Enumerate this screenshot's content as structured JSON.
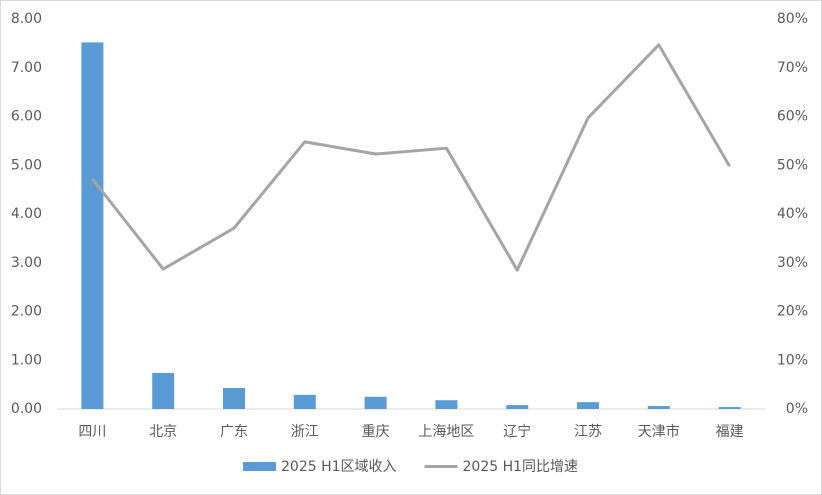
{
  "chart_data": {
    "type": "bar-line",
    "categories": [
      "四川",
      "北京",
      "广东",
      "浙江",
      "重庆",
      "上海地区",
      "辽宁",
      "江苏",
      "天津市",
      "福建"
    ],
    "series": [
      {
        "name": "2025 H1区域收入",
        "type": "bar",
        "color": "#5b9bd5",
        "values": [
          7.52,
          0.74,
          0.43,
          0.29,
          0.25,
          0.18,
          0.08,
          0.14,
          0.06,
          0.04
        ]
      },
      {
        "name": "2025 H1同比增速",
        "type": "line",
        "axis": "y2",
        "color": "#a5a5a5",
        "values": [
          47.2,
          28.7,
          37.1,
          54.8,
          52.3,
          53.5,
          28.5,
          59.7,
          74.7,
          49.8
        ]
      }
    ],
    "ylim": [
      0,
      8
    ],
    "yticks": [
      {
        "value": 0,
        "label": "0.00"
      },
      {
        "value": 1,
        "label": "1.00"
      },
      {
        "value": 2,
        "label": "2.00"
      },
      {
        "value": 3,
        "label": "3.00"
      },
      {
        "value": 4,
        "label": "4.00"
      },
      {
        "value": 5,
        "label": "5.00"
      },
      {
        "value": 6,
        "label": "6.00"
      },
      {
        "value": 7,
        "label": "7.00"
      },
      {
        "value": 8,
        "label": "8.00"
      }
    ],
    "y2lim": [
      0,
      80
    ],
    "y2ticks": [
      {
        "value": 0,
        "label": "0%"
      },
      {
        "value": 10,
        "label": "10%"
      },
      {
        "value": 20,
        "label": "20%"
      },
      {
        "value": 30,
        "label": "30%"
      },
      {
        "value": 40,
        "label": "40%"
      },
      {
        "value": 50,
        "label": "50%"
      },
      {
        "value": 60,
        "label": "60%"
      },
      {
        "value": 70,
        "label": "70%"
      },
      {
        "value": 80,
        "label": "80%"
      }
    ],
    "grid": false,
    "legend": "bottom"
  }
}
